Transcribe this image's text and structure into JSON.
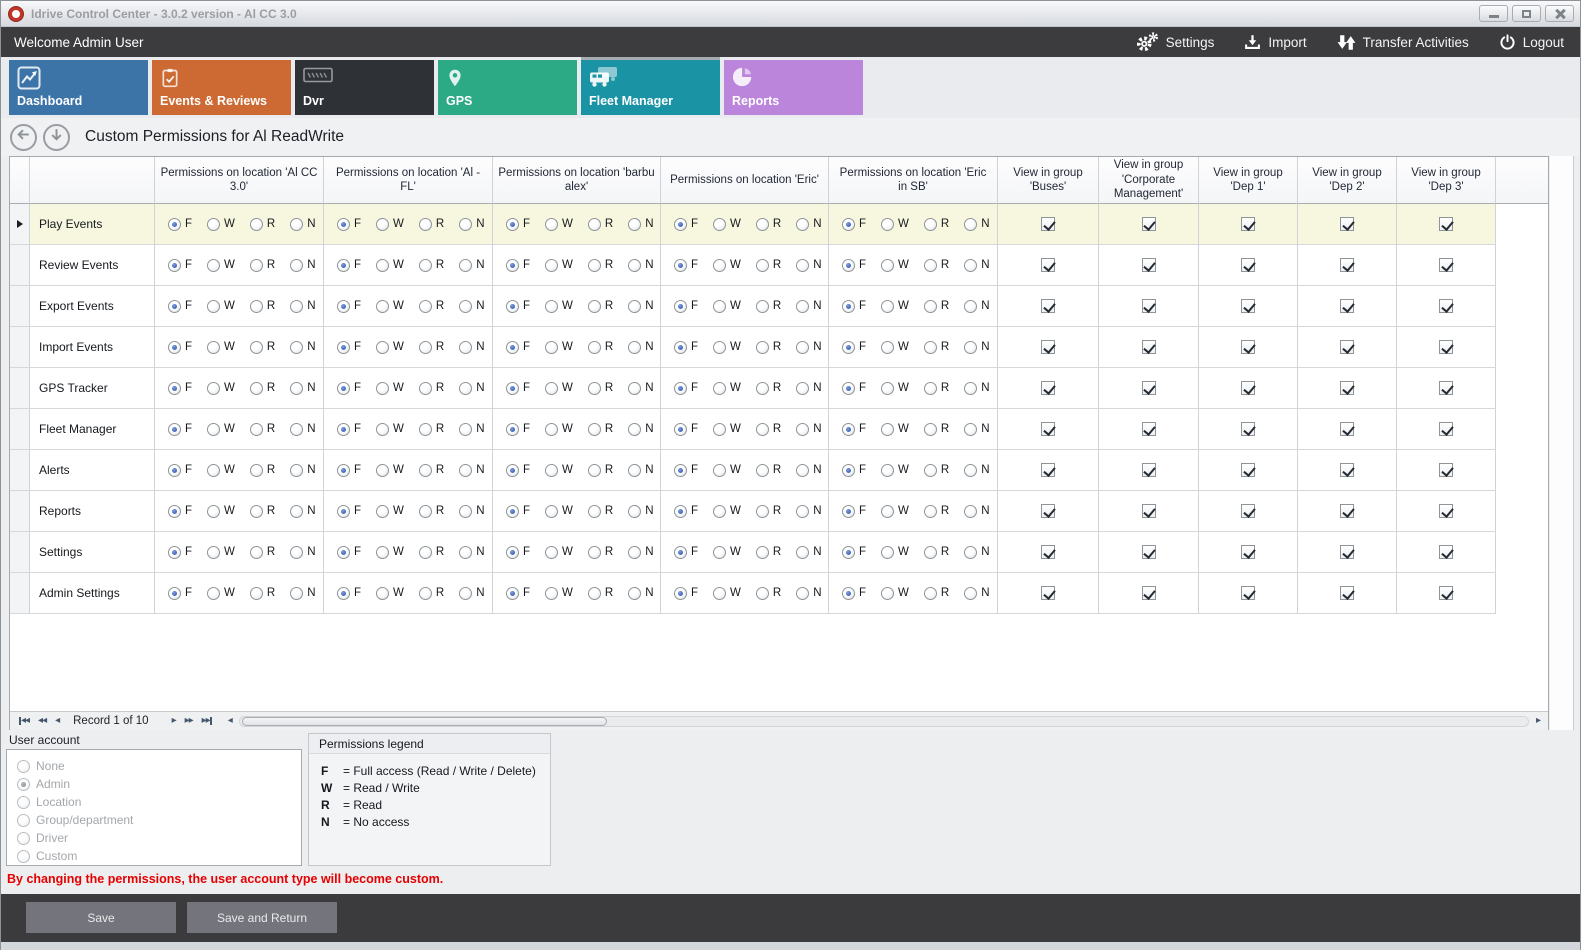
{
  "window": {
    "title": "Idrive Control Center - 3.0.2 version - Al CC 3.0"
  },
  "topbar": {
    "welcome": "Welcome Admin User",
    "actions": [
      {
        "label": "Settings",
        "icon": "gears-icon"
      },
      {
        "label": "Import",
        "icon": "import-icon"
      },
      {
        "label": "Transfer Activities",
        "icon": "transfer-icon"
      },
      {
        "label": "Logout",
        "icon": "power-icon"
      }
    ]
  },
  "tabs": [
    {
      "label": "Dashboard",
      "icon": "chart-line-icon",
      "color": "#3d74a8",
      "selected": false
    },
    {
      "label": "Events & Reviews",
      "icon": "clipboard-check-icon",
      "color": "#cd6a33",
      "selected": false
    },
    {
      "label": "Dvr",
      "icon": "dvr-device-icon",
      "color": "#2e3237",
      "selected": false
    },
    {
      "label": "GPS",
      "icon": "map-pin-icon",
      "color": "#2baa85",
      "selected": false
    },
    {
      "label": "Fleet Manager",
      "icon": "fleet-trucks-icon",
      "color": "#1a93a4",
      "selected": true
    },
    {
      "label": "Reports",
      "icon": "pie-chart-icon",
      "color": "#bb85dc",
      "selected": false
    }
  ],
  "page_header": {
    "title": "Custom Permissions for Al ReadWrite"
  },
  "grid": {
    "permission_columns": [
      "Permissions on location 'Al CC 3.0'",
      "Permissions on location 'Al - FL'",
      "Permissions on location 'barbu alex'",
      "Permissions on location 'Eric'",
      "Permissions on location 'Eric in SB'"
    ],
    "group_columns": [
      "View in group 'Buses'",
      "View in group 'Corporate Management'",
      "View in group 'Dep 1'",
      "View in group 'Dep 2'",
      "View in group 'Dep 3'"
    ],
    "radio_options": [
      "F",
      "W",
      "R",
      "N"
    ],
    "rows": [
      {
        "label": "Play Events",
        "selected": true,
        "permissions": [
          "F",
          "F",
          "F",
          "F",
          "F"
        ],
        "groups": [
          true,
          true,
          true,
          true,
          true
        ]
      },
      {
        "label": "Review Events",
        "selected": false,
        "permissions": [
          "F",
          "F",
          "F",
          "F",
          "F"
        ],
        "groups": [
          true,
          true,
          true,
          true,
          true
        ]
      },
      {
        "label": "Export Events",
        "selected": false,
        "permissions": [
          "F",
          "F",
          "F",
          "F",
          "F"
        ],
        "groups": [
          true,
          true,
          true,
          true,
          true
        ]
      },
      {
        "label": "Import Events",
        "selected": false,
        "permissions": [
          "F",
          "F",
          "F",
          "F",
          "F"
        ],
        "groups": [
          true,
          true,
          true,
          true,
          true
        ]
      },
      {
        "label": "GPS Tracker",
        "selected": false,
        "permissions": [
          "F",
          "F",
          "F",
          "F",
          "F"
        ],
        "groups": [
          true,
          true,
          true,
          true,
          true
        ]
      },
      {
        "label": "Fleet Manager",
        "selected": false,
        "permissions": [
          "F",
          "F",
          "F",
          "F",
          "F"
        ],
        "groups": [
          true,
          true,
          true,
          true,
          true
        ]
      },
      {
        "label": "Alerts",
        "selected": false,
        "permissions": [
          "F",
          "F",
          "F",
          "F",
          "F"
        ],
        "groups": [
          true,
          true,
          true,
          true,
          true
        ]
      },
      {
        "label": "Reports",
        "selected": false,
        "permissions": [
          "F",
          "F",
          "F",
          "F",
          "F"
        ],
        "groups": [
          true,
          true,
          true,
          true,
          true
        ]
      },
      {
        "label": "Settings",
        "selected": false,
        "permissions": [
          "F",
          "F",
          "F",
          "F",
          "F"
        ],
        "groups": [
          true,
          true,
          true,
          true,
          true
        ]
      },
      {
        "label": "Admin Settings",
        "selected": false,
        "permissions": [
          "F",
          "F",
          "F",
          "F",
          "F"
        ],
        "groups": [
          true,
          true,
          true,
          true,
          true
        ]
      }
    ]
  },
  "navigator": {
    "record_text": "Record 1 of 10"
  },
  "user_account": {
    "label": "User account",
    "options": [
      "None",
      "Admin",
      "Location",
      "Group/department",
      "Driver",
      "Custom"
    ],
    "selected": "Admin"
  },
  "legend": {
    "title": "Permissions legend",
    "entries": [
      {
        "key": "F",
        "desc": "= Full access (Read / Write / Delete)"
      },
      {
        "key": "W",
        "desc": "= Read / Write"
      },
      {
        "key": "R",
        "desc": "= Read"
      },
      {
        "key": "N",
        "desc": "= No access"
      }
    ]
  },
  "warning": "By changing the permissions, the user account type will become custom.",
  "footer": {
    "save": "Save",
    "save_return": "Save and Return"
  },
  "colors": {
    "warning": "#e60000"
  }
}
